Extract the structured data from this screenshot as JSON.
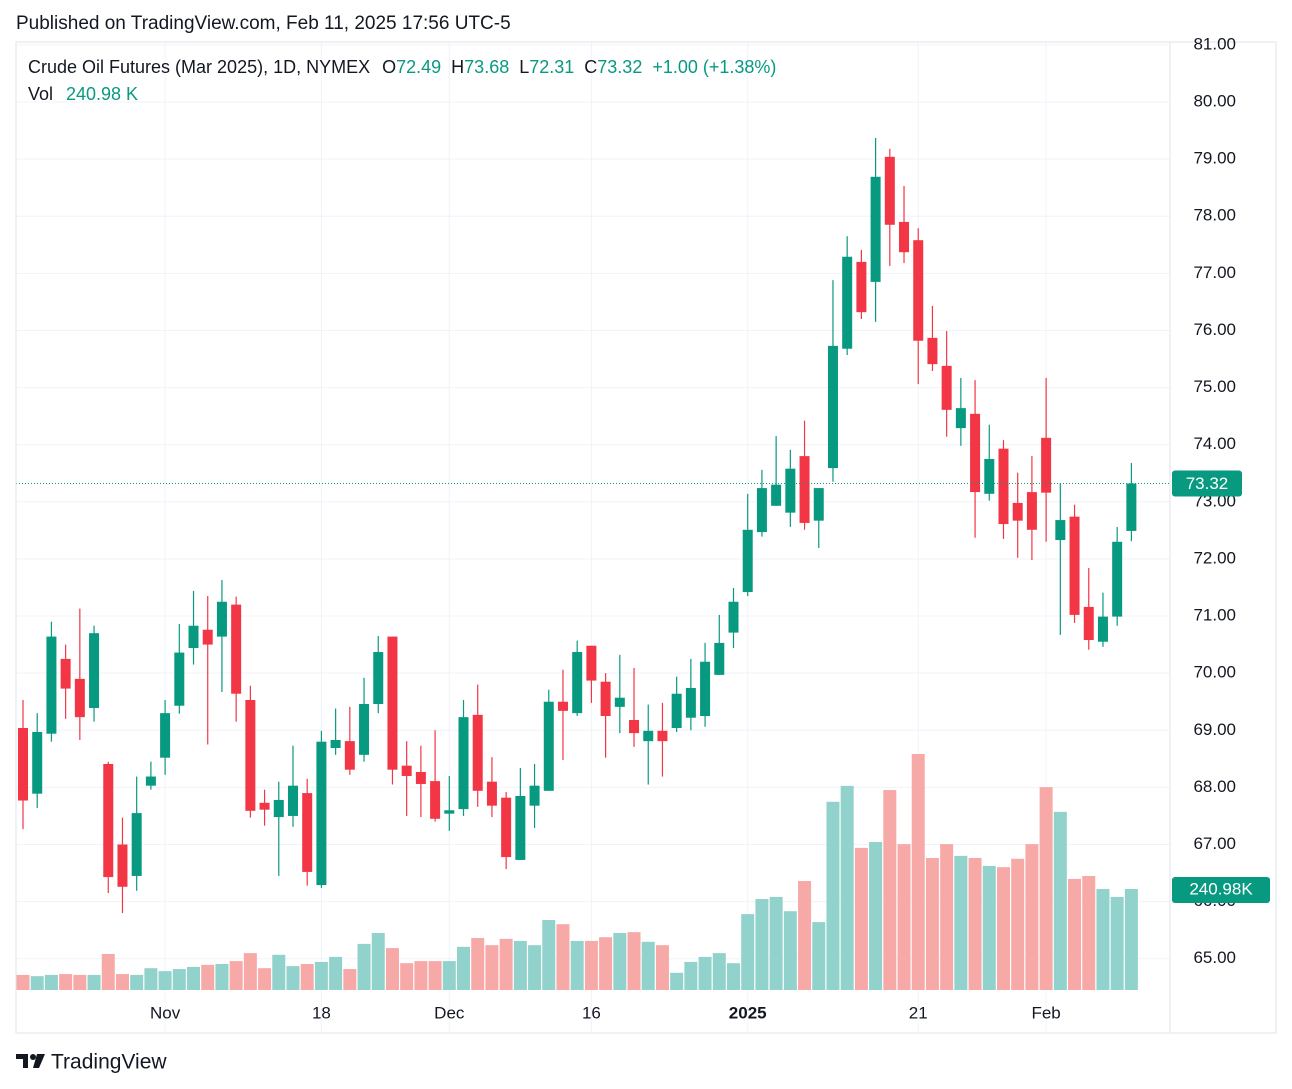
{
  "published": "Published on TradingView.com, Feb 11, 2025 17:56 UTC-5",
  "brand": "TradingView",
  "chart_data": {
    "type": "candlestick",
    "title": "Crude Oil Futures (Mar 2025), 1D, NYMEX",
    "ohlc_labels": [
      "O",
      "H",
      "L",
      "C"
    ],
    "change": "+1.00 (+1.38%)",
    "categories": [
      null,
      null,
      null,
      null,
      null,
      null,
      null,
      null,
      null,
      null,
      "Nov",
      null,
      null,
      null,
      null,
      null,
      null,
      null,
      null,
      null,
      null,
      "18",
      null,
      null,
      null,
      null,
      null,
      null,
      null,
      null,
      "Dec",
      null,
      null,
      null,
      null,
      null,
      null,
      null,
      null,
      null,
      "16",
      null,
      null,
      null,
      null,
      null,
      null,
      null,
      null,
      null,
      null,
      "2025",
      null,
      null,
      null,
      null,
      null,
      null,
      null,
      null,
      null,
      null,
      null,
      "21",
      null,
      null,
      null,
      null,
      null,
      null,
      null,
      null,
      "Feb",
      null,
      null,
      null,
      null,
      null,
      null
    ],
    "open": [
      69.04,
      67.89,
      68.94,
      70.25,
      69.9,
      69.39,
      68.41,
      67.0,
      66.45,
      68.03,
      68.52,
      69.43,
      70.44,
      70.76,
      70.64,
      71.2,
      69.53,
      67.73,
      67.48,
      67.5,
      67.9,
      66.29,
      68.69,
      68.81,
      68.57,
      69.46,
      70.64,
      68.38,
      68.27,
      68.11,
      67.54,
      67.62,
      69.27,
      68.1,
      67.82,
      66.73,
      67.68,
      67.94,
      69.5,
      69.3,
      70.48,
      69.85,
      69.41,
      69.18,
      68.81,
      68.99,
      69.04,
      69.22,
      69.25,
      69.97,
      70.71,
      71.42,
      72.47,
      72.93,
      72.81,
      73.8,
      72.67,
      73.59,
      75.68,
      77.2,
      76.85,
      79.04,
      77.9,
      77.58,
      75.87,
      75.38,
      74.29,
      74.54,
      73.14,
      73.93,
      72.98,
      73.17,
      74.12,
      72.33,
      72.74,
      71.16,
      70.55,
      70.99,
      72.49
    ],
    "high": [
      69.53,
      69.3,
      70.9,
      70.5,
      71.13,
      70.83,
      68.45,
      67.47,
      68.19,
      68.45,
      69.53,
      70.86,
      71.44,
      71.35,
      71.63,
      71.34,
      69.78,
      67.96,
      68.1,
      68.73,
      68.15,
      68.99,
      69.38,
      69.41,
      69.92,
      70.65,
      70.64,
      68.81,
      68.73,
      69.0,
      68.2,
      69.53,
      69.8,
      68.53,
      67.92,
      68.34,
      68.41,
      69.71,
      70.06,
      70.57,
      70.48,
      70.0,
      70.32,
      70.09,
      69.45,
      69.48,
      69.94,
      70.25,
      70.53,
      71.02,
      71.49,
      73.14,
      73.56,
      74.15,
      73.91,
      74.42,
      73.24,
      76.88,
      77.65,
      77.41,
      79.37,
      79.18,
      78.53,
      77.79,
      76.43,
      75.99,
      75.17,
      75.13,
      74.35,
      74.08,
      73.51,
      73.8,
      75.17,
      73.33,
      72.95,
      71.84,
      71.41,
      72.56,
      73.68
    ],
    "low": [
      67.27,
      67.64,
      68.8,
      69.2,
      68.83,
      69.15,
      66.15,
      65.8,
      66.19,
      67.96,
      68.22,
      69.29,
      70.15,
      68.75,
      69.67,
      69.15,
      67.47,
      67.33,
      66.45,
      67.31,
      66.28,
      66.24,
      68.57,
      68.22,
      68.45,
      69.3,
      68.05,
      67.5,
      67.48,
      67.4,
      67.24,
      67.5,
      67.66,
      67.48,
      66.57,
      66.73,
      67.29,
      67.94,
      68.48,
      69.25,
      69.48,
      68.52,
      68.95,
      68.71,
      68.05,
      68.19,
      68.97,
      69.0,
      69.06,
      69.97,
      70.44,
      71.35,
      72.39,
      72.93,
      72.56,
      72.51,
      72.19,
      73.35,
      75.57,
      76.2,
      76.15,
      77.13,
      77.18,
      75.06,
      75.29,
      74.14,
      73.98,
      72.37,
      73.02,
      72.35,
      72.02,
      71.98,
      72.3,
      70.67,
      70.88,
      70.41,
      70.46,
      70.83,
      72.31
    ],
    "close": [
      67.77,
      68.97,
      70.64,
      69.73,
      69.23,
      70.7,
      66.43,
      66.26,
      67.55,
      68.19,
      69.3,
      70.36,
      70.83,
      70.5,
      71.25,
      69.64,
      67.59,
      67.61,
      67.78,
      68.03,
      66.52,
      68.8,
      68.83,
      68.31,
      69.46,
      70.37,
      68.31,
      68.2,
      68.06,
      67.45,
      67.6,
      69.23,
      67.94,
      67.68,
      66.78,
      67.85,
      68.03,
      69.5,
      69.34,
      70.37,
      69.87,
      69.25,
      69.57,
      68.95,
      68.99,
      68.81,
      69.64,
      69.74,
      70.2,
      70.53,
      71.25,
      72.51,
      73.24,
      73.3,
      73.58,
      72.63,
      73.24,
      75.73,
      77.29,
      76.32,
      78.69,
      77.85,
      77.37,
      75.82,
      75.41,
      74.61,
      74.64,
      73.17,
      73.75,
      72.61,
      72.67,
      72.51,
      73.16,
      72.68,
      71.02,
      70.58,
      70.99,
      72.3,
      73.32
    ],
    "volume": {
      "name": "Vol",
      "last_label": "240.98 K",
      "tag_label": "240.98K",
      "values": [
        36,
        33,
        36,
        38,
        36,
        36,
        86,
        38,
        36,
        52,
        45,
        50,
        55,
        60,
        62,
        69,
        88,
        52,
        84,
        57,
        62,
        67,
        79,
        50,
        110,
        136,
        100,
        64,
        69,
        69,
        69,
        103,
        124,
        107,
        122,
        117,
        107,
        167,
        157,
        117,
        117,
        126,
        136,
        138,
        115,
        107,
        41,
        67,
        79,
        88,
        64,
        181,
        217,
        222,
        188,
        260,
        162,
        449,
        487,
        339,
        353,
        477,
        348,
        563,
        315,
        348,
        320,
        315,
        296,
        293,
        313,
        348,
        484,
        425,
        265,
        272,
        241,
        222,
        240.98
      ]
    },
    "ylim": [
      63.7,
      81.05
    ],
    "yticks": [
      {
        "value": 65,
        "label": "65.00"
      },
      {
        "value": 66,
        "label": "66.00"
      },
      {
        "value": 67,
        "label": "67.00"
      },
      {
        "value": 68,
        "label": "68.00"
      },
      {
        "value": 69,
        "label": "69.00"
      },
      {
        "value": 70,
        "label": "70.00"
      },
      {
        "value": 71,
        "label": "71.00"
      },
      {
        "value": 72,
        "label": "72.00"
      },
      {
        "value": 73,
        "label": "73.00"
      },
      {
        "value": 74,
        "label": "74.00"
      },
      {
        "value": 75,
        "label": "75.00"
      },
      {
        "value": 76,
        "label": "76.00"
      },
      {
        "value": 77,
        "label": "77.00"
      },
      {
        "value": 78,
        "label": "78.00"
      },
      {
        "value": 79,
        "label": "79.00"
      },
      {
        "value": 80,
        "label": "80.00"
      },
      {
        "value": 81,
        "label": "81.00"
      }
    ],
    "grid": true,
    "up_color": "#089981",
    "down_color": "#f23645",
    "volume_up_color": "#92d2cc",
    "volume_down_color": "#f7a9a7"
  }
}
